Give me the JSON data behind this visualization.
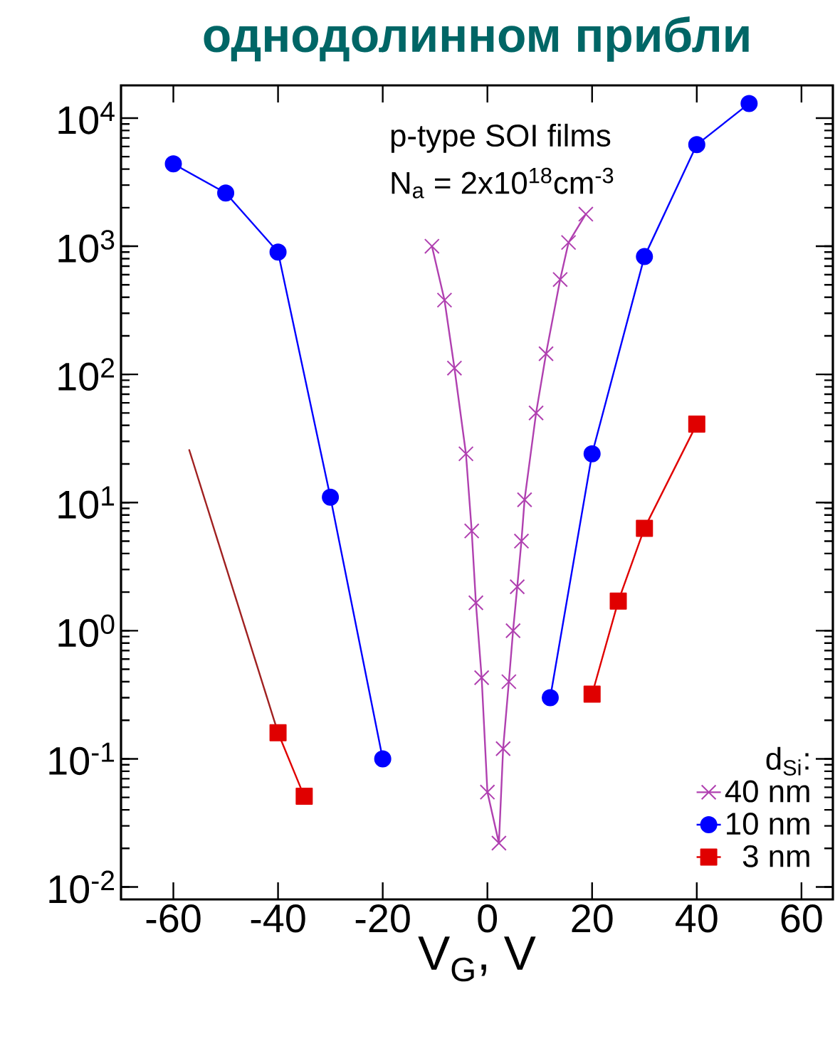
{
  "chart_data": {
    "type": "line",
    "title": "однодолинном прибли",
    "xlabel": "V$_{G}$, V",
    "legend_title": "d$_{Si}$:",
    "annotations": [
      "p-type SOI films",
      "N$_{a}$ = 2x10$^{18}$cm$^{-3}$"
    ],
    "log": "y",
    "xlim": [
      -70,
      66
    ],
    "ylim": [
      0.008,
      18000
    ],
    "xticks": [
      -60,
      -40,
      -20,
      0,
      20,
      40,
      60
    ],
    "yticks": [
      {
        "value": 0.01,
        "label": "10$^{-2}$"
      },
      {
        "value": 0.1,
        "label": "10$^{-1}$"
      },
      {
        "value": 1,
        "label": "10$^{0}$"
      },
      {
        "value": 10,
        "label": "10$^{1}$"
      },
      {
        "value": 100,
        "label": "10$^{2}$"
      },
      {
        "value": 1000,
        "label": "10$^{3}$"
      },
      {
        "value": 10000,
        "label": "10$^{4}$"
      }
    ],
    "legend": "bottom right",
    "grid": false,
    "series": [
      {
        "name": "40 nm",
        "color": "#b040b0",
        "marker": "cross",
        "x": [
          -10.6,
          -8.2,
          -6.3,
          -4.1,
          -3.0,
          -2.2,
          -1.1,
          0,
          2.2,
          3.0,
          4.1,
          4.9,
          5.7,
          6.5,
          7.1,
          9.3,
          11.2,
          13.9,
          15.5,
          18.8
        ],
        "values": [
          1000,
          380,
          112,
          24,
          6.0,
          1.65,
          0.43,
          0.055,
          0.022,
          0.12,
          0.4,
          1.0,
          2.2,
          5.0,
          10.5,
          50,
          145,
          550,
          1070,
          1780
        ]
      },
      {
        "name": "10 nm",
        "color": "#0000ff",
        "marker": "circle",
        "x": [
          -60,
          -50,
          -40,
          -30,
          -20,
          null,
          12,
          20,
          30,
          40,
          50
        ],
        "values": [
          4400,
          2600,
          900,
          11,
          0.1,
          null,
          0.3,
          24,
          830,
          6200,
          13000
        ]
      },
      {
        "name": "3 nm",
        "color": "#e00000",
        "marker": "square",
        "x": [
          -40,
          -35,
          null,
          20,
          25,
          30,
          40
        ],
        "values": [
          0.16,
          0.051,
          null,
          0.32,
          1.7,
          6.3,
          41
        ]
      },
      {
        "color": "#a02020",
        "marker": "none",
        "x": [
          -57,
          -40
        ],
        "values": [
          26,
          0.16
        ]
      }
    ]
  }
}
